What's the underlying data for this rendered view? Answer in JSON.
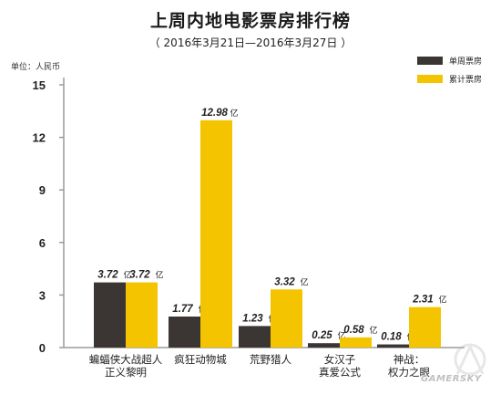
{
  "chart_data": {
    "type": "bar",
    "title": "上周内地电影票房排行榜",
    "subtitle": "（ 2016年3月21日—2016年3月27日 ）",
    "unit_label": "单位：人民币",
    "categories": [
      [
        "蝙蝠侠大战超人",
        "正义黎明"
      ],
      [
        "疯狂动物城"
      ],
      [
        "荒野猎人"
      ],
      [
        "女汉子",
        "真爱公式"
      ],
      [
        "神战：",
        "权力之眼"
      ]
    ],
    "series": [
      {
        "name": "单周票房",
        "color": "#3b3634",
        "values": [
          3.72,
          1.77,
          1.23,
          0.25,
          0.18
        ],
        "labels": [
          "3.72",
          "1.77",
          "1.23",
          "0.25",
          "0.18"
        ]
      },
      {
        "name": "累计票房",
        "color": "#f5c400",
        "values": [
          3.72,
          12.98,
          3.32,
          0.58,
          2.31
        ],
        "labels": [
          "3.72",
          "12.98",
          "3.32",
          "0.58",
          "2.31"
        ]
      }
    ],
    "value_suffix": "亿",
    "ylim": [
      0,
      15
    ],
    "yticks": [
      0,
      3,
      6,
      9,
      12,
      15
    ],
    "legend_position": "top-right",
    "grid": false
  },
  "watermark": {
    "text": "GAMERSKY"
  }
}
